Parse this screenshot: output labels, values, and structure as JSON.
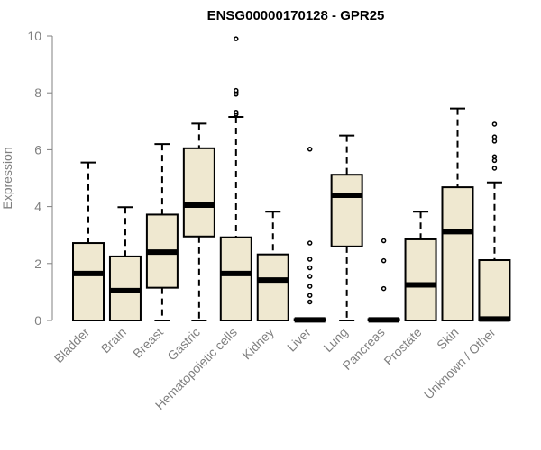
{
  "chart_data": {
    "type": "box",
    "title": "ENSG00000170128 - GPR25",
    "xlabel": "",
    "ylabel": "Expression",
    "ylim": [
      0,
      10
    ],
    "yticks": [
      0,
      2,
      4,
      6,
      8,
      10
    ],
    "box_fill": "#efe8d0",
    "box_stroke": "#000000",
    "categories": [
      "Bladder",
      "Brain",
      "Breast",
      "Gastric",
      "Hematopoietic cells",
      "Kidney",
      "Liver",
      "Lung",
      "Pancreas",
      "Prostate",
      "Skin",
      "Unknown / Other"
    ],
    "boxes": [
      {
        "min": 0,
        "q1": 0,
        "median": 1.65,
        "q3": 2.72,
        "max": 5.55,
        "outliers": []
      },
      {
        "min": 0,
        "q1": 0,
        "median": 1.05,
        "q3": 2.25,
        "max": 3.98,
        "outliers": []
      },
      {
        "min": 0,
        "q1": 1.15,
        "median": 2.4,
        "q3": 3.72,
        "max": 6.2,
        "outliers": []
      },
      {
        "min": 0,
        "q1": 2.95,
        "median": 4.05,
        "q3": 6.05,
        "max": 6.92,
        "outliers": []
      },
      {
        "min": 0,
        "q1": 0,
        "median": 1.65,
        "q3": 2.92,
        "max": 7.15,
        "outliers": [
          7.25,
          7.32,
          7.95,
          8.02,
          8.08,
          9.9
        ]
      },
      {
        "min": 0,
        "q1": 0,
        "median": 1.42,
        "q3": 2.32,
        "max": 3.82,
        "outliers": []
      },
      {
        "min": 0,
        "q1": 0,
        "median": 0.02,
        "q3": 0.05,
        "max": 0.05,
        "outliers": [
          0.65,
          0.88,
          1.2,
          1.55,
          1.85,
          2.15,
          2.72,
          6.02
        ]
      },
      {
        "min": 0,
        "q1": 2.6,
        "median": 4.4,
        "q3": 5.12,
        "max": 6.5,
        "outliers": []
      },
      {
        "min": 0,
        "q1": 0,
        "median": 0.02,
        "q3": 0.05,
        "max": 0.05,
        "outliers": [
          1.12,
          2.1,
          2.8
        ]
      },
      {
        "min": 0,
        "q1": 0,
        "median": 1.25,
        "q3": 2.85,
        "max": 3.82,
        "outliers": []
      },
      {
        "min": 0,
        "q1": 0,
        "median": 3.12,
        "q3": 4.68,
        "max": 7.45,
        "outliers": []
      },
      {
        "min": 0,
        "q1": 0,
        "median": 0.05,
        "q3": 2.12,
        "max": 4.85,
        "outliers": [
          5.35,
          5.62,
          5.75,
          6.3,
          6.45,
          6.9
        ]
      }
    ]
  }
}
